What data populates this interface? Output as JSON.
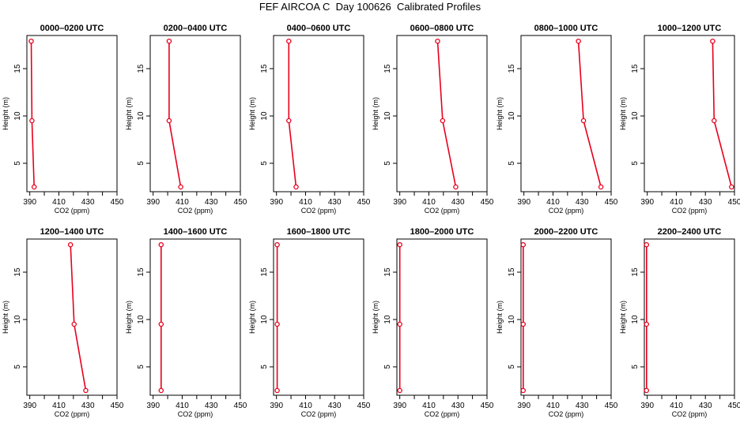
{
  "title": "FEF AIRCOA C  Day 100626  Calibrated Profiles",
  "chart_data": {
    "type": "line",
    "xlabel": "CO2 (ppm)",
    "ylabel": "Height (m)",
    "xlim": [
      388,
      450
    ],
    "ylim": [
      2,
      18.5
    ],
    "xticks": [
      390,
      410,
      430,
      450
    ],
    "yticks": [
      5,
      10,
      15
    ],
    "line_color": "#e8001c",
    "panels": [
      {
        "title": "0000–0200 UTC",
        "points": [
          {
            "x": 391.0,
            "y": 17.9
          },
          {
            "x": 391.5,
            "y": 9.5
          },
          {
            "x": 393.0,
            "y": 2.5
          }
        ]
      },
      {
        "title": "0200–0400 UTC",
        "points": [
          {
            "x": 401.0,
            "y": 17.9
          },
          {
            "x": 401.0,
            "y": 9.5
          },
          {
            "x": 409.0,
            "y": 2.5
          }
        ]
      },
      {
        "title": "0400–0600 UTC",
        "points": [
          {
            "x": 398.5,
            "y": 17.9
          },
          {
            "x": 398.5,
            "y": 9.5
          },
          {
            "x": 403.5,
            "y": 2.5
          }
        ]
      },
      {
        "title": "0600–0800 UTC",
        "points": [
          {
            "x": 416.0,
            "y": 17.9
          },
          {
            "x": 419.5,
            "y": 9.5
          },
          {
            "x": 428.5,
            "y": 2.5
          }
        ]
      },
      {
        "title": "0800–1000 UTC",
        "points": [
          {
            "x": 427.5,
            "y": 17.9
          },
          {
            "x": 431.0,
            "y": 9.5
          },
          {
            "x": 443.0,
            "y": 2.5
          }
        ]
      },
      {
        "title": "1000–1200 UTC",
        "points": [
          {
            "x": 435.0,
            "y": 17.9
          },
          {
            "x": 436.0,
            "y": 9.5
          },
          {
            "x": 448.0,
            "y": 2.5
          }
        ]
      },
      {
        "title": "1200–1400 UTC",
        "points": [
          {
            "x": 418.0,
            "y": 17.9
          },
          {
            "x": 420.5,
            "y": 9.5
          },
          {
            "x": 428.5,
            "y": 2.5
          }
        ]
      },
      {
        "title": "1400–1600 UTC",
        "points": [
          {
            "x": 395.5,
            "y": 17.9
          },
          {
            "x": 395.5,
            "y": 9.5
          },
          {
            "x": 395.5,
            "y": 2.5
          }
        ]
      },
      {
        "title": "1600–1800 UTC",
        "points": [
          {
            "x": 390.5,
            "y": 17.9
          },
          {
            "x": 390.5,
            "y": 9.5
          },
          {
            "x": 390.5,
            "y": 2.5
          }
        ]
      },
      {
        "title": "1800–2000 UTC",
        "points": [
          {
            "x": 390.0,
            "y": 17.9
          },
          {
            "x": 390.0,
            "y": 9.5
          },
          {
            "x": 390.0,
            "y": 2.5
          }
        ]
      },
      {
        "title": "2000–2200 UTC",
        "points": [
          {
            "x": 389.5,
            "y": 17.9
          },
          {
            "x": 389.5,
            "y": 9.5
          },
          {
            "x": 389.5,
            "y": 2.5
          }
        ]
      },
      {
        "title": "2200–2400 UTC",
        "points": [
          {
            "x": 389.5,
            "y": 17.9
          },
          {
            "x": 389.5,
            "y": 9.5
          },
          {
            "x": 389.5,
            "y": 2.5
          }
        ]
      }
    ]
  }
}
